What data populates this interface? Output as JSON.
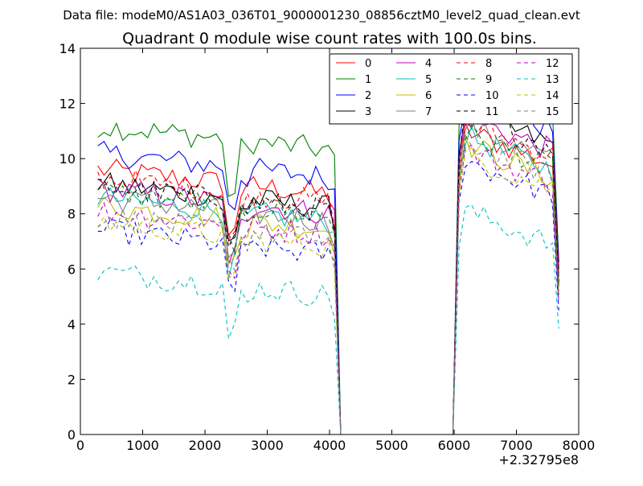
{
  "figure": {
    "suptitle": "Data file: modeM0/AS1A03_036T01_9000001230_08856cztM0_level2_quad_clean.evt"
  },
  "chart_data": {
    "type": "line",
    "title": "Quadrant 0 module wise count rates with 100.0s bins.",
    "xlabel": "",
    "ylabel": "",
    "x_offset_label": "+2.32795e8",
    "xlim": [
      0,
      8000
    ],
    "ylim": [
      0,
      14
    ],
    "xticks": [
      0,
      1000,
      2000,
      3000,
      4000,
      5000,
      6000,
      7000,
      8000
    ],
    "yticks": [
      0,
      2,
      4,
      6,
      8,
      10,
      12,
      14
    ],
    "grid": false,
    "legend_position": "top-right",
    "legend_columns": 4,
    "series": [
      {
        "name": "0",
        "color": "#ff0000",
        "dash": "solid",
        "base1": 9.6,
        "base2": 10.3
      },
      {
        "name": "1",
        "color": "#008000",
        "dash": "solid",
        "base1": 11.2,
        "base2": 12.3
      },
      {
        "name": "2",
        "color": "#0000ff",
        "dash": "solid",
        "base1": 10.2,
        "base2": 11.6
      },
      {
        "name": "3",
        "color": "#000000",
        "dash": "solid",
        "base1": 9.1,
        "base2": 11.0
      },
      {
        "name": "4",
        "color": "#bf00bf",
        "dash": "solid",
        "base1": 8.9,
        "base2": 10.8
      },
      {
        "name": "5",
        "color": "#00bfbf",
        "dash": "solid",
        "base1": 8.6,
        "base2": 10.1
      },
      {
        "name": "6",
        "color": "#bfbf00",
        "dash": "solid",
        "base1": 8.3,
        "base2": 9.8
      },
      {
        "name": "7",
        "color": "#808080",
        "dash": "solid",
        "base1": 8.6,
        "base2": 10.5
      },
      {
        "name": "8",
        "color": "#ff0000",
        "dash": "dashed",
        "base1": 9.3,
        "base2": 10.6
      },
      {
        "name": "9",
        "color": "#008000",
        "dash": "dashed",
        "base1": 8.8,
        "base2": 10.2
      },
      {
        "name": "10",
        "color": "#0000ff",
        "dash": "dashed",
        "base1": 7.4,
        "base2": 9.2
      },
      {
        "name": "11",
        "color": "#000000",
        "dash": "dashed",
        "base1": 9.0,
        "base2": 10.9
      },
      {
        "name": "12",
        "color": "#bf00bf",
        "dash": "dashed",
        "base1": 8.1,
        "base2": 9.6
      },
      {
        "name": "13",
        "color": "#00bfbf",
        "dash": "dashed",
        "base1": 5.9,
        "base2": 7.4
      },
      {
        "name": "14",
        "color": "#bfbf00",
        "dash": "dashed",
        "base1": 7.7,
        "base2": 9.4
      },
      {
        "name": "15",
        "color": "#808080",
        "dash": "dashed",
        "base1": 7.9,
        "base2": 9.9
      }
    ],
    "time_bins": {
      "segment1": {
        "start": 280,
        "end": 4080,
        "step": 100
      },
      "gap": {
        "start": 4180,
        "end": 5980,
        "value": 0
      },
      "segment2": {
        "start": 6080,
        "end": 7680,
        "step": 100
      }
    }
  }
}
